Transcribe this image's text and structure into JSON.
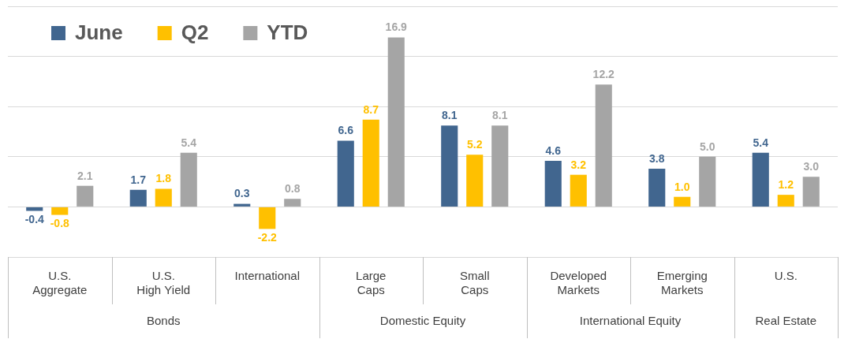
{
  "chart_data": {
    "type": "bar",
    "categories": [
      [
        "U.S.",
        "Aggregate"
      ],
      [
        "U.S.",
        "High Yield"
      ],
      [
        "International"
      ],
      [
        "Large",
        "Caps"
      ],
      [
        "Small",
        "Caps"
      ],
      [
        "Developed",
        "Markets"
      ],
      [
        "Emerging",
        "Markets"
      ],
      [
        "U.S."
      ]
    ],
    "category_groups": [
      "Bonds",
      "Bonds",
      "Bonds",
      "Domestic Equity",
      "Domestic Equity",
      "International Equity",
      "International Equity",
      "Real Estate"
    ],
    "series": [
      {
        "name": "June",
        "color": "#41668F",
        "values": [
          -0.4,
          1.7,
          0.3,
          6.6,
          8.1,
          4.6,
          3.8,
          5.4
        ],
        "value_labels": [
          "-0.4",
          "1.7",
          "0.3",
          "6.6",
          "8.1",
          "4.6",
          "3.8",
          "5.4"
        ]
      },
      {
        "name": "Q2",
        "color": "#FFC000",
        "values": [
          -0.8,
          1.8,
          -2.2,
          8.7,
          5.2,
          3.2,
          1.0,
          1.2
        ],
        "value_labels": [
          "-0.8",
          "1.8",
          "-2.2",
          "8.7",
          "5.2",
          "3.2",
          "1.0",
          "1.2"
        ]
      },
      {
        "name": "YTD",
        "color": "#A5A5A5",
        "values": [
          2.1,
          5.4,
          0.8,
          16.9,
          8.1,
          12.2,
          5.0,
          3.0
        ],
        "value_labels": [
          "2.1",
          "5.4",
          "0.8",
          "16.9",
          "8.1",
          "12.2",
          "5.0",
          "3.0"
        ]
      }
    ],
    "ylim": [
      -5,
      20
    ],
    "yticks": [
      -5,
      0,
      5,
      10,
      15,
      20
    ],
    "grid": true,
    "tick_labels": "x",
    "data_labels": true,
    "legend": "top-left"
  }
}
